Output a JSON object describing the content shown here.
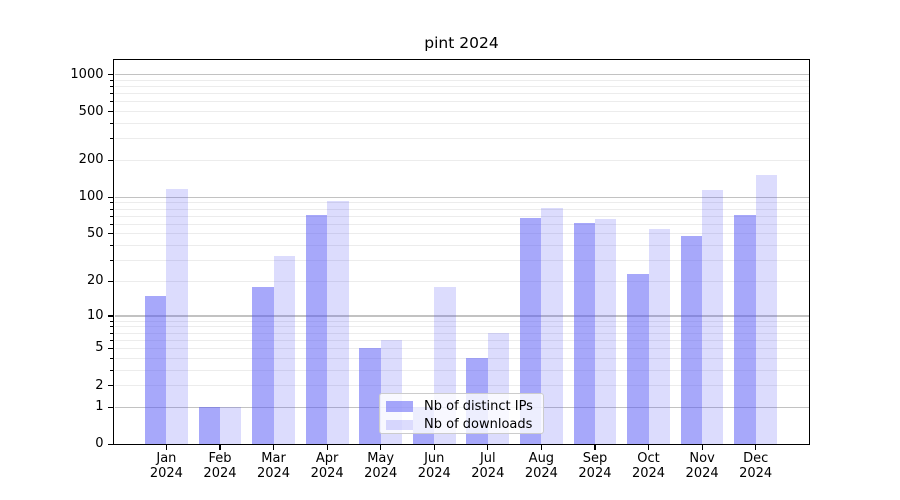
{
  "chart_data": {
    "type": "bar",
    "title": "pint 2024",
    "categories": [
      "Jan",
      "Feb",
      "Mar",
      "Apr",
      "May",
      "Jun",
      "Jul",
      "Aug",
      "Sep",
      "Oct",
      "Nov",
      "Dec"
    ],
    "x_year": "2024",
    "series": [
      {
        "name": "Nb of distinct IPs",
        "color": "rgba(80,82,245,0.5)",
        "values": [
          15,
          1,
          18,
          71,
          5,
          1,
          4,
          67,
          61,
          23,
          48,
          72
        ]
      },
      {
        "name": "Nb of downloads",
        "color": "rgba(80,82,245,0.2)",
        "values": [
          117,
          1,
          33,
          93,
          6,
          18,
          7,
          82,
          66,
          55,
          115,
          153
        ]
      }
    ],
    "y_axis": {
      "scale": "log1p",
      "tick_values": [
        1000,
        500,
        200,
        100,
        50,
        20,
        10,
        5,
        2,
        1,
        0
      ],
      "tick_labels": [
        "1000",
        "500",
        "200",
        "100",
        "50",
        "20",
        "10",
        "5",
        "2",
        "1",
        "0"
      ],
      "major_grid_values": [
        1,
        10,
        100,
        1000
      ],
      "minor_grid_values": [
        2,
        3,
        4,
        5,
        6,
        7,
        8,
        9,
        20,
        30,
        40,
        50,
        60,
        70,
        80,
        90,
        200,
        300,
        400,
        500,
        600,
        700,
        800,
        900
      ],
      "minor_tick_values": [
        3,
        4,
        6,
        7,
        8,
        9,
        30,
        40,
        60,
        70,
        80,
        90,
        300,
        400,
        600,
        700,
        800,
        900
      ],
      "ylim": [
        0,
        1310
      ]
    },
    "grid": "horizontal",
    "legend": {
      "position": "lower center"
    }
  },
  "colors": {
    "background": "#ffffff",
    "text": "#000000",
    "spine": "#000000",
    "major_grid": "#c2c2c2",
    "minor_grid": "#ececec",
    "legend_bg": "rgba(255,255,255,0.8)",
    "legend_border": "#cccccc"
  }
}
